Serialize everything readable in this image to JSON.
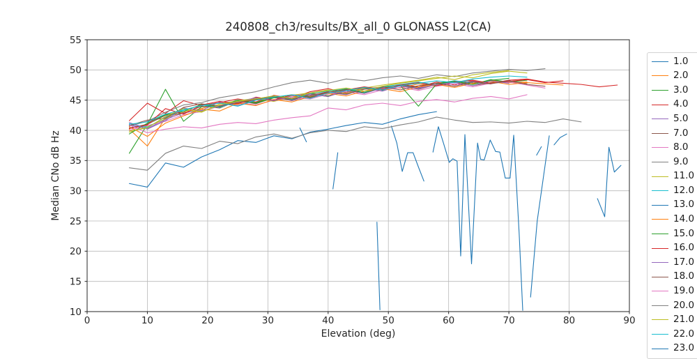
{
  "chart_data": {
    "type": "line",
    "title": "240808_ch3/results/BX_all_0 GLONASS L2(CA)",
    "xlabel": "Elevation (deg)",
    "ylabel": "Median CNo dB Hz",
    "xlim": [
      0,
      90
    ],
    "ylim": [
      10,
      55
    ],
    "xticks": [
      0,
      10,
      20,
      30,
      40,
      50,
      60,
      70,
      80,
      90
    ],
    "yticks": [
      10,
      15,
      20,
      25,
      30,
      35,
      40,
      45,
      50,
      55
    ],
    "grid": true,
    "grid_color": "#b8b8b8",
    "axis_color": "#262626",
    "legend_position": "right-outside-clipped",
    "legend_items": [
      {
        "label": "1.0",
        "color": "#1f77b4"
      },
      {
        "label": "2.0",
        "color": "#ff7f0e"
      },
      {
        "label": "3.0",
        "color": "#2ca02c"
      },
      {
        "label": "4.0",
        "color": "#d62728"
      },
      {
        "label": "5.0",
        "color": "#9467bd"
      },
      {
        "label": "7.0",
        "color": "#8c564b"
      },
      {
        "label": "8.0",
        "color": "#e377c2"
      },
      {
        "label": "9.0",
        "color": "#7f7f7f"
      },
      {
        "label": "11.0",
        "color": "#bcbd22"
      },
      {
        "label": "12.0",
        "color": "#17becf"
      },
      {
        "label": "13.0",
        "color": "#1f77b4"
      },
      {
        "label": "14.0",
        "color": "#ff7f0e"
      },
      {
        "label": "15.0",
        "color": "#2ca02c"
      },
      {
        "label": "16.0",
        "color": "#d62728"
      },
      {
        "label": "17.0",
        "color": "#9467bd"
      },
      {
        "label": "18.0",
        "color": "#8c564b"
      },
      {
        "label": "19.0",
        "color": "#e377c2"
      },
      {
        "label": "20.0",
        "color": "#7f7f7f"
      },
      {
        "label": "21.0",
        "color": "#bcbd22"
      },
      {
        "label": "22.0",
        "color": "#17becf"
      },
      {
        "label": "23.0",
        "color": "#1f77b4"
      }
    ],
    "series": [
      {
        "name": "1.0",
        "color": "#1f77b4",
        "x": [
          7,
          10,
          13,
          16,
          19,
          22,
          25,
          28,
          31,
          34,
          37,
          40,
          43,
          46,
          49,
          52,
          55,
          58
        ],
        "y": [
          31.2,
          30.6,
          34.6,
          33.9,
          35.6,
          36.8,
          38.3,
          38.0,
          39.1,
          38.6,
          39.7,
          40.2,
          40.8,
          41.3,
          41.0,
          41.9,
          42.6,
          43.1
        ]
      },
      {
        "name": "2.0",
        "color": "#ff7f0e",
        "x": [
          7,
          10,
          13,
          16,
          19,
          22,
          25,
          28,
          31,
          34,
          37,
          40,
          43,
          46,
          49,
          52,
          55,
          58,
          61,
          64,
          67,
          70,
          73
        ],
        "y": [
          40.2,
          37.4,
          42.1,
          43.0,
          43.6,
          44.6,
          44.3,
          45.2,
          44.8,
          45.5,
          46.2,
          45.7,
          46.8,
          46.3,
          47.2,
          47.0,
          47.7,
          47.3,
          48.1,
          47.7,
          48.3,
          47.9,
          48.0
        ]
      },
      {
        "name": "3.0",
        "color": "#2ca02c",
        "x": [
          7,
          10,
          13,
          16,
          19,
          22,
          25,
          28,
          31,
          34,
          37,
          40,
          43,
          46,
          49,
          52,
          55,
          58,
          61,
          64,
          67,
          70,
          73
        ],
        "y": [
          36.2,
          41.0,
          46.8,
          41.5,
          43.9,
          44.1,
          45.0,
          44.6,
          45.5,
          45.1,
          46.1,
          45.7,
          46.4,
          47.0,
          46.6,
          47.5,
          47.1,
          47.8,
          48.2,
          47.6,
          48.4,
          48.0,
          48.3
        ]
      },
      {
        "name": "4.0",
        "color": "#d62728",
        "x": [
          7,
          10,
          13,
          16,
          19,
          22,
          25,
          28,
          31,
          34,
          37,
          40,
          43,
          46,
          49,
          52,
          55,
          58,
          61,
          64,
          67,
          70,
          73,
          76,
          79,
          82,
          85,
          88
        ],
        "y": [
          41.6,
          44.5,
          42.8,
          44.9,
          44.1,
          44.6,
          45.2,
          44.7,
          45.8,
          45.3,
          46.4,
          46.9,
          46.2,
          47.1,
          46.7,
          47.6,
          47.2,
          48.0,
          47.5,
          48.2,
          47.8,
          48.3,
          48.5,
          48.0,
          47.8,
          47.6,
          47.2,
          47.5
        ]
      },
      {
        "name": "5.0",
        "color": "#9467bd",
        "x": [
          7,
          10,
          13,
          16,
          19,
          22,
          25,
          28,
          31,
          34,
          37,
          40,
          43,
          46,
          49,
          52,
          55,
          58,
          61,
          64,
          67
        ],
        "y": [
          40.9,
          40.3,
          41.8,
          42.9,
          43.3,
          44.7,
          44.1,
          45.1,
          45.6,
          44.9,
          45.7,
          46.3,
          45.9,
          46.9,
          46.5,
          47.4,
          47.0,
          47.8,
          47.3,
          48.1,
          47.7
        ]
      },
      {
        "name": "7.0",
        "color": "#8c564b",
        "x": [
          7,
          10,
          13,
          16,
          19,
          22,
          25,
          28,
          31,
          34,
          37,
          40,
          43,
          46,
          49,
          52,
          55,
          58,
          61,
          64,
          67,
          70,
          73
        ],
        "y": [
          40.4,
          41.0,
          42.5,
          42.8,
          44.0,
          43.7,
          44.9,
          44.4,
          45.4,
          45.0,
          46.0,
          45.6,
          46.6,
          46.2,
          47.0,
          47.4,
          46.8,
          47.6,
          48.0,
          47.4,
          47.9,
          48.2,
          47.7
        ]
      },
      {
        "name": "8.0",
        "color": "#e377c2",
        "x": [
          7,
          10,
          13,
          16,
          19,
          22,
          25,
          28,
          31,
          34,
          37,
          40,
          43,
          46,
          49,
          52,
          55,
          58,
          61,
          64,
          67,
          70,
          73,
          76
        ],
        "y": [
          40.0,
          40.8,
          41.5,
          42.6,
          43.1,
          44.1,
          44.6,
          44.2,
          45.0,
          45.5,
          45.2,
          46.0,
          46.4,
          45.9,
          46.7,
          47.1,
          46.6,
          47.3,
          47.7,
          47.2,
          47.8,
          48.0,
          47.5,
          47.0
        ]
      },
      {
        "name": "9.0",
        "color": "#7f7f7f",
        "x": [
          7,
          10,
          13,
          16,
          19,
          22,
          25,
          28,
          31,
          34,
          37,
          40,
          43,
          46,
          49,
          52,
          55,
          58,
          61,
          64,
          67,
          70,
          73,
          76
        ],
        "y": [
          40.7,
          41.5,
          43.0,
          44.2,
          44.6,
          45.4,
          45.9,
          46.4,
          47.2,
          47.9,
          48.3,
          47.8,
          48.5,
          48.2,
          48.7,
          49.0,
          48.6,
          49.2,
          48.9,
          49.5,
          49.8,
          50.1,
          49.9,
          50.2
        ]
      },
      {
        "name": "11.0",
        "color": "#bcbd22",
        "x": [
          7,
          10,
          13,
          16,
          19,
          22,
          25,
          28,
          31,
          34,
          37,
          40,
          43,
          46,
          49,
          52,
          55,
          58,
          61,
          64,
          67,
          70
        ],
        "y": [
          39.7,
          40.6,
          41.9,
          43.4,
          43.0,
          44.4,
          44.9,
          45.3,
          44.8,
          45.8,
          46.2,
          46.7,
          46.1,
          47.0,
          47.5,
          47.9,
          48.3,
          48.8,
          48.4,
          49.2,
          49.6,
          49.9
        ]
      },
      {
        "name": "12.0",
        "color": "#17becf",
        "x": [
          7,
          10,
          13,
          16,
          19,
          22,
          25,
          28,
          31,
          34,
          37,
          40,
          43,
          46,
          49,
          52,
          55,
          58,
          61,
          64
        ],
        "y": [
          41.1,
          40.5,
          42.2,
          43.3,
          44.2,
          43.8,
          44.8,
          45.2,
          45.7,
          45.1,
          46.1,
          46.5,
          46.9,
          46.3,
          47.2,
          47.6,
          48.0,
          47.5,
          48.2,
          47.9
        ]
      },
      {
        "name": "13.0",
        "color": "#1f77b4",
        "x": [
          35.3,
          36.4,
          null,
          40.8,
          41.6,
          null,
          48.1,
          48.6,
          null,
          50.5,
          51.4,
          52.3,
          53.2,
          54.1,
          55,
          55.9,
          null,
          57.4,
          58.3,
          59.2,
          60.1,
          60.7,
          61.4,
          62,
          62.7,
          63.8,
          64.8,
          65.3,
          65.9,
          66.9,
          67.8,
          68.5,
          69.4,
          70.2,
          70.8,
          71.7,
          72.3,
          null,
          73.6,
          74.7,
          76.7,
          null,
          74.6,
          75.4,
          null,
          77.5,
          78.5,
          79.6,
          null,
          84.7,
          85.9,
          86.6,
          87.5,
          88.6
        ],
        "y": [
          40.4,
          38.1,
          null,
          30.3,
          36.3,
          null,
          24.8,
          10.3,
          null,
          40.7,
          37.9,
          33.2,
          36.3,
          36.3,
          33.9,
          31.6,
          null,
          36.4,
          40.6,
          37.7,
          34.7,
          35.3,
          34.9,
          19.2,
          39.3,
          17.9,
          37.9,
          35.2,
          35.1,
          38.4,
          36.5,
          36.4,
          32.1,
          32.1,
          39.2,
          23.0,
          10.2,
          null,
          12.4,
          25.0,
          39.1,
          null,
          35.9,
          37.3,
          null,
          37.6,
          38.8,
          39.4,
          null,
          28.7,
          25.7,
          37.2,
          33.1,
          34.2
        ]
      },
      {
        "name": "14.0",
        "color": "#ff7f0e",
        "x": [
          7,
          10,
          13,
          16,
          19,
          22,
          25,
          28,
          31,
          34,
          37,
          40,
          43,
          46,
          49,
          52,
          55,
          58,
          61,
          64,
          67,
          70,
          73,
          76,
          79
        ],
        "y": [
          40.6,
          39.0,
          41.2,
          42.4,
          43.5,
          43.2,
          44.5,
          44.1,
          45.1,
          44.7,
          45.6,
          46.1,
          45.7,
          46.5,
          46.9,
          46.4,
          47.2,
          47.6,
          47.1,
          47.8,
          48.1,
          47.6,
          47.9,
          47.7,
          47.5
        ]
      },
      {
        "name": "15.0",
        "color": "#2ca02c",
        "x": [
          7,
          10,
          13,
          16,
          19,
          22,
          25,
          28,
          31,
          34,
          37,
          40,
          43,
          46,
          49,
          52,
          55,
          58,
          61,
          64,
          67,
          70
        ],
        "y": [
          39.4,
          41.2,
          42.6,
          43.1,
          44.3,
          43.9,
          45.0,
          44.5,
          45.4,
          45.9,
          45.5,
          46.3,
          46.8,
          46.2,
          47.1,
          47.4,
          44.0,
          47.7,
          48.1,
          47.6,
          48.3,
          48.6
        ]
      },
      {
        "name": "16.0",
        "color": "#d62728",
        "x": [
          7,
          10,
          13,
          16,
          19,
          22,
          25,
          28,
          31,
          34,
          37,
          40,
          43,
          46,
          49,
          52,
          55,
          58,
          61,
          64,
          67,
          70,
          73,
          76,
          79
        ],
        "y": [
          40.3,
          40.9,
          43.6,
          42.7,
          44.2,
          44.8,
          44.4,
          45.5,
          45.0,
          45.9,
          45.4,
          46.3,
          46.7,
          47.2,
          46.8,
          47.5,
          47.9,
          47.4,
          48.0,
          48.3,
          47.8,
          48.1,
          48.4,
          47.9,
          48.2
        ]
      },
      {
        "name": "17.0",
        "color": "#9467bd",
        "x": [
          7,
          10,
          13,
          16,
          19,
          22,
          25,
          28,
          31,
          34,
          37,
          40,
          43,
          46,
          49,
          52,
          55,
          58,
          61,
          64,
          67,
          70
        ],
        "y": [
          41.3,
          40.2,
          41.6,
          43.7,
          43.2,
          44.0,
          44.7,
          45.4,
          44.9,
          45.7,
          46.0,
          45.6,
          46.6,
          46.1,
          47.0,
          47.3,
          46.9,
          47.6,
          47.9,
          47.4,
          48.2,
          47.8
        ]
      },
      {
        "name": "18.0",
        "color": "#8c564b",
        "x": [
          7,
          10,
          13,
          16,
          19,
          22,
          25,
          28,
          31,
          34,
          37,
          40,
          43,
          46,
          49,
          52,
          55,
          58,
          61,
          64,
          67,
          70,
          73,
          76
        ],
        "y": [
          40.8,
          41.7,
          42.0,
          43.8,
          44.4,
          44.0,
          44.6,
          45.1,
          45.6,
          45.2,
          45.8,
          46.4,
          46.0,
          46.8,
          47.2,
          46.7,
          47.4,
          47.8,
          47.3,
          48.0,
          47.7,
          48.2,
          47.6,
          47.3
        ]
      },
      {
        "name": "19.0",
        "color": "#e377c2",
        "x": [
          7,
          10,
          13,
          16,
          19,
          22,
          25,
          28,
          31,
          34,
          37,
          40,
          43,
          46,
          49,
          52,
          55,
          58,
          61,
          64,
          67,
          70,
          73
        ],
        "y": [
          40.9,
          39.6,
          40.2,
          40.6,
          40.4,
          41.0,
          41.3,
          41.1,
          41.7,
          42.1,
          42.4,
          43.7,
          43.4,
          44.2,
          44.5,
          44.1,
          44.8,
          45.1,
          44.7,
          45.3,
          45.6,
          45.2,
          45.9
        ]
      },
      {
        "name": "20.0",
        "color": "#7f7f7f",
        "x": [
          7,
          10,
          13,
          16,
          19,
          22,
          25,
          28,
          31,
          34,
          37,
          40,
          43,
          46,
          49,
          52,
          55,
          58,
          61,
          64,
          67,
          70,
          73,
          76,
          79,
          82
        ],
        "y": [
          33.8,
          33.4,
          36.2,
          37.4,
          37.0,
          38.2,
          37.8,
          38.9,
          39.4,
          38.7,
          39.6,
          40.0,
          39.8,
          40.6,
          40.3,
          40.9,
          41.4,
          42.2,
          41.7,
          41.3,
          41.4,
          41.2,
          41.5,
          41.3,
          41.9,
          41.4
        ]
      },
      {
        "name": "21.0",
        "color": "#bcbd22",
        "x": [
          7,
          10,
          13,
          16,
          19,
          22,
          25,
          28,
          31,
          34,
          37,
          40,
          43,
          46,
          49,
          52,
          55,
          58,
          61,
          64,
          67,
          70,
          73
        ],
        "y": [
          39.9,
          40.4,
          42.3,
          43.6,
          43.1,
          44.2,
          44.8,
          45.2,
          45.7,
          45.3,
          46.2,
          46.6,
          47.0,
          46.5,
          47.3,
          47.8,
          48.2,
          48.6,
          49.0,
          48.7,
          49.4,
          49.8,
          49.5
        ]
      },
      {
        "name": "22.0",
        "color": "#17becf",
        "x": [
          7,
          10,
          13,
          16,
          19,
          22,
          25,
          28,
          31,
          34,
          37,
          40,
          43,
          46,
          49,
          52,
          55,
          58,
          61,
          64,
          67,
          70,
          73
        ],
        "y": [
          41.0,
          41.4,
          42.7,
          43.4,
          44.1,
          44.5,
          44.0,
          45.0,
          45.5,
          45.9,
          45.3,
          46.2,
          46.6,
          47.1,
          46.7,
          47.4,
          47.8,
          48.2,
          47.9,
          48.5,
          48.8,
          49.0,
          48.8
        ]
      }
    ]
  }
}
